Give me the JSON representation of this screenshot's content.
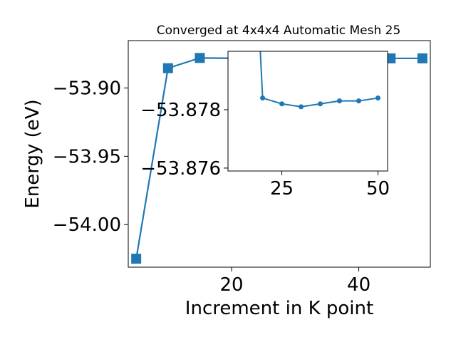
{
  "chart_data": [
    {
      "type": "line",
      "title": "Converged at 4x4x4 Automatic Mesh 25",
      "xlabel": "Increment in K point",
      "ylabel": "Energy (eV)",
      "xlim": [
        3.75,
        51.25
      ],
      "ylim": [
        -54.0312,
        -53.8653
      ],
      "xticks": [
        20,
        40
      ],
      "yticks": [
        -53.9,
        -53.95,
        -54.0
      ],
      "ytick_labels": [
        "−53.90",
        "−53.95",
        "−54.00"
      ],
      "grid": false,
      "color": "#1f77b4",
      "marker": "square",
      "series": [
        {
          "x": [
            5,
            10,
            15,
            25,
            30,
            35,
            40,
            45,
            50
          ],
          "y": [
            -54.025,
            -53.8855,
            -53.878,
            -53.8784,
            -53.8782,
            -53.8781,
            -53.8782,
            -53.8783,
            -53.8783
          ]
        }
      ]
    },
    {
      "type": "line",
      "title": "",
      "xlabel": "",
      "ylabel": "",
      "xlim": [
        11,
        52.5
      ],
      "ylim": [
        -53.8759,
        -53.88
      ],
      "xticks": [
        25,
        50
      ],
      "yticks": [
        -53.878,
        -53.876
      ],
      "ytick_labels": [
        "−53.878",
        "−53.876"
      ],
      "grid": false,
      "color": "#1f77b4",
      "marker": "circle",
      "series": [
        {
          "x": [
            20,
            25,
            30,
            35,
            40,
            45,
            50
          ],
          "y": [
            -53.8784,
            -53.8782,
            -53.8781,
            -53.8782,
            -53.8783,
            -53.8783,
            -53.8784
          ],
          "lead_in_from_above": true
        }
      ]
    }
  ]
}
